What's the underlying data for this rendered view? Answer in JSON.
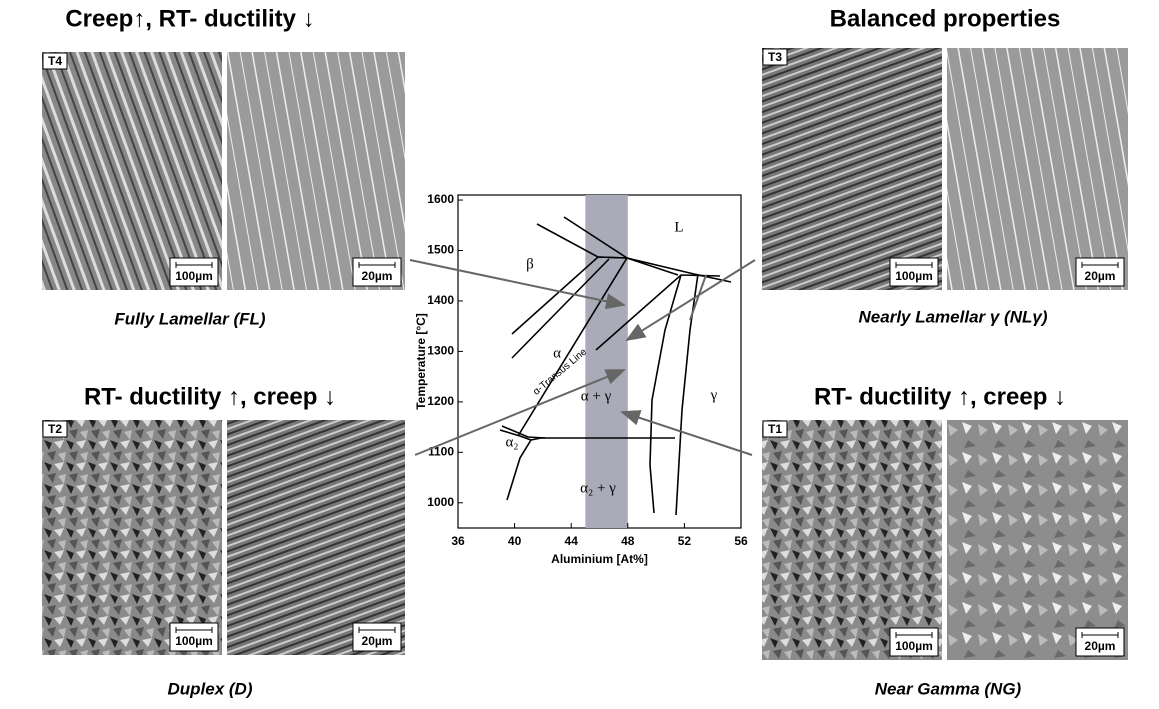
{
  "panels": [
    {
      "heading": "Creep↑, RT- ductility ↓",
      "tag": "T4",
      "scale_bars": [
        "100µm",
        "20µm"
      ],
      "caption": "Fully Lamellar (FL)"
    },
    {
      "heading": "Balanced properties",
      "tag": "T3",
      "scale_bars": [
        "100µm",
        "20µm"
      ],
      "caption": "Nearly Lamellar γ (NLγ)"
    },
    {
      "heading": "RT- ductility ↑, creep ↓",
      "tag": "T2",
      "scale_bars": [
        "100µm",
        "20µm"
      ],
      "caption": "Duplex (D)"
    },
    {
      "heading": "RT- ductility ↑, creep ↓",
      "tag": "T1",
      "scale_bars": [
        "100µm",
        "20µm"
      ],
      "caption": "Near Gamma (NG)"
    }
  ],
  "phase_diagram": {
    "x_label": "Aluminium [At%]",
    "y_label": "Temperature [°C]",
    "xlim": [
      36,
      56
    ],
    "ylim": [
      950,
      1610
    ],
    "xticks": [
      36,
      40,
      44,
      48,
      52,
      56
    ],
    "yticks": [
      1000,
      1100,
      1200,
      1300,
      1400,
      1500,
      1600
    ],
    "band": [
      45,
      48
    ],
    "region_labels": [
      "L",
      "β",
      "α",
      "α-Transus Line",
      "α + γ",
      "γ",
      "α₂",
      "α₂ + γ"
    ]
  }
}
